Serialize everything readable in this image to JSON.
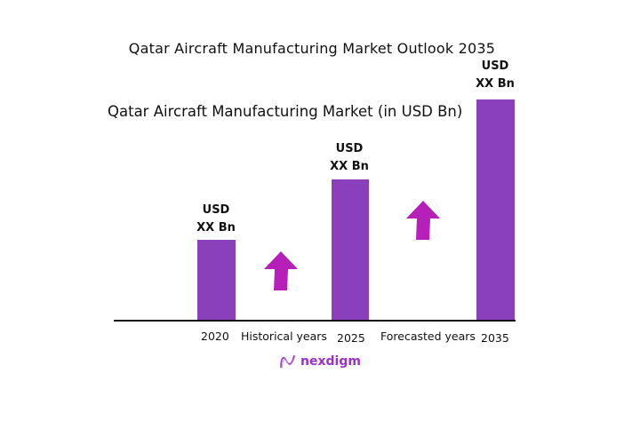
{
  "chart_data": {
    "type": "bar",
    "title": "Qatar Aircraft Manufacturing Market Outlook 2035",
    "subtitle": "Qatar Aircraft Manufacturing Market (in USD Bn)",
    "categories": [
      "2020",
      "2025",
      "2035"
    ],
    "data_labels": [
      {
        "line1": "USD",
        "line2": "XX Bn"
      },
      {
        "line1": "USD",
        "line2": "XX Bn"
      },
      {
        "line1": "USD",
        "line2": "XX Bn"
      }
    ],
    "period_labels": [
      "Historical years",
      "Forecasted years"
    ],
    "grid": false,
    "bar_color": "#8a3fbb",
    "arrow_color": "#b620b8"
  },
  "brand": {
    "name": "nexdigm",
    "color": "#9b30c8"
  }
}
